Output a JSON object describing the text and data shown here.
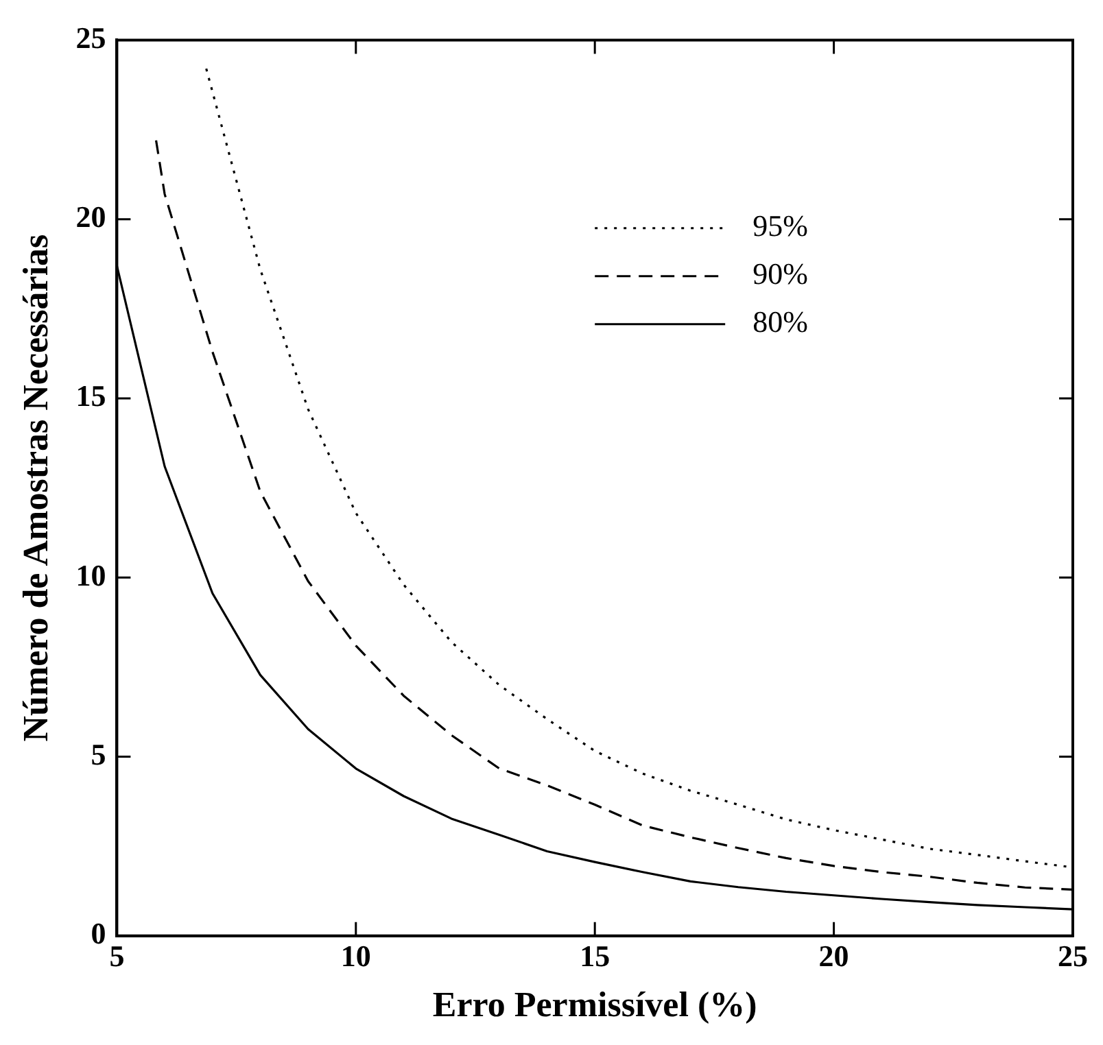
{
  "chart_data": {
    "type": "line",
    "xlabel": "Erro Permissível (%)",
    "ylabel": "Número de Amostras Necessárias",
    "xlim": [
      5,
      25
    ],
    "ylim": [
      0,
      25
    ],
    "xticks": [
      5,
      10,
      15,
      20,
      25
    ],
    "yticks": [
      0,
      5,
      10,
      15,
      20,
      25
    ],
    "grid": false,
    "legend": "top right",
    "marker": "none",
    "series": [
      {
        "name": "95%",
        "color": "#000000",
        "line_style": "dotted",
        "x": [
          6.87,
          8,
          9,
          10,
          11,
          12,
          13,
          14,
          15,
          16,
          17,
          18,
          19,
          20,
          21,
          22,
          23,
          24,
          25
        ],
        "values": [
          24.2,
          18.6,
          14.7,
          11.8,
          9.8,
          8.2,
          7.0,
          6.05,
          5.16,
          4.53,
          4.05,
          3.66,
          3.25,
          2.95,
          2.69,
          2.43,
          2.26,
          2.08,
          1.91
        ]
      },
      {
        "name": "90%",
        "color": "#000000",
        "line_style": "dashed",
        "x": [
          5.82,
          6,
          7,
          8,
          9,
          10,
          11,
          12,
          13,
          14,
          15,
          16,
          17,
          18,
          19,
          20,
          21,
          22,
          23,
          24,
          25
        ],
        "values": [
          22.2,
          20.7,
          16.3,
          12.4,
          9.9,
          8.1,
          6.7,
          5.6,
          4.67,
          4.2,
          3.66,
          3.08,
          2.75,
          2.45,
          2.17,
          1.95,
          1.78,
          1.65,
          1.48,
          1.35,
          1.29
        ]
      },
      {
        "name": "80%",
        "color": "#000000",
        "line_style": "solid",
        "x": [
          5,
          6,
          7,
          8,
          9,
          10,
          11,
          12,
          13,
          14,
          15,
          16,
          17,
          18,
          19,
          20,
          21,
          22,
          23,
          24,
          25
        ],
        "values": [
          18.7,
          13.1,
          9.56,
          7.28,
          5.77,
          4.67,
          3.9,
          3.27,
          2.82,
          2.36,
          2.06,
          1.78,
          1.52,
          1.36,
          1.23,
          1.13,
          1.03,
          0.94,
          0.86,
          0.8,
          0.74
        ]
      }
    ]
  }
}
